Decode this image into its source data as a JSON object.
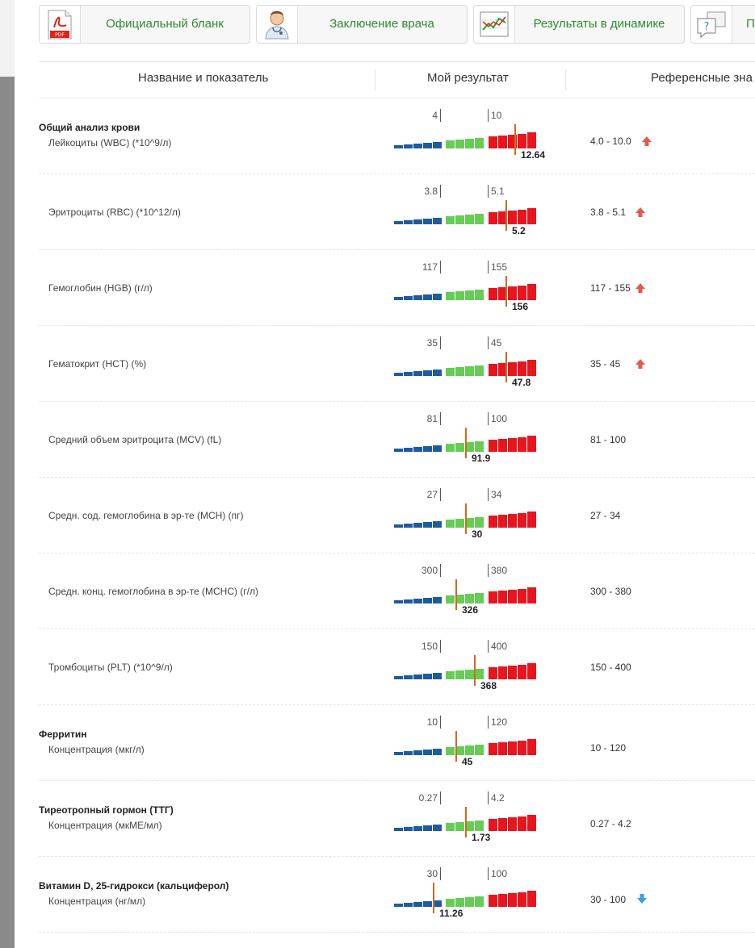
{
  "toolbar": {
    "buttons": [
      {
        "label": "Официальный бланк",
        "icon": "pdf-icon"
      },
      {
        "label": "Заключение врача",
        "icon": "doctor-icon"
      },
      {
        "label": "Результаты в динамике",
        "icon": "chart-dynamics-icon"
      },
      {
        "label": "По",
        "icon": "question-bubbles-icon"
      }
    ]
  },
  "table": {
    "headers": [
      "Название и показатель",
      "Мой результат",
      "Референсные зна"
    ]
  },
  "rows": [
    {
      "group": "Общий анализ крови",
      "param": "Лейкоциты (WBC) (*10^9/л)",
      "low": "4",
      "high": "10",
      "value": "12.64",
      "marker_pos": 0.837,
      "ref": "4.0 - 10.0",
      "flag": "up"
    },
    {
      "group": "",
      "param": "Эритроциты (RBC) (*10^12/л)",
      "low": "3.8",
      "high": "5.1",
      "value": "5.2",
      "marker_pos": 0.774,
      "ref": "3.8 - 5.1",
      "flag": "up"
    },
    {
      "group": "",
      "param": "Гемоглобин (HGB) (г/л)",
      "low": "117",
      "high": "155",
      "value": "156",
      "marker_pos": 0.774,
      "ref": "117 - 155",
      "flag": "up"
    },
    {
      "group": "",
      "param": "Гематокрит (HCT) (%)",
      "low": "35",
      "high": "45",
      "value": "47.8",
      "marker_pos": 0.774,
      "ref": "35 - 45",
      "flag": "up"
    },
    {
      "group": "",
      "param": "Средний объем эритроцита (MCV) (fL)",
      "low": "81",
      "high": "100",
      "value": "91.9",
      "marker_pos": 0.493,
      "ref": "81 - 100",
      "flag": ""
    },
    {
      "group": "",
      "param": "Средн. сод. гемоглобина в эр-те (MCH) (пг)",
      "low": "27",
      "high": "34",
      "value": "30",
      "marker_pos": 0.493,
      "ref": "27 - 34",
      "flag": ""
    },
    {
      "group": "",
      "param": "Средн. конц. гемоглобина в эр-те (MCHC) (г/л)",
      "low": "300",
      "high": "380",
      "value": "326",
      "marker_pos": 0.425,
      "ref": "300 - 380",
      "flag": ""
    },
    {
      "group": "",
      "param": "Тромбоциты (PLT) (*10^9/л)",
      "low": "150",
      "high": "400",
      "value": "368",
      "marker_pos": 0.558,
      "ref": "150 - 400",
      "flag": ""
    },
    {
      "group": "Ферритин",
      "param": "Концентрация (мкг/л)",
      "low": "10",
      "high": "120",
      "value": "45",
      "marker_pos": 0.425,
      "ref": "10 - 120",
      "flag": ""
    },
    {
      "group": "Тиреотропный гормон (ТТГ)",
      "param": "Концентрация (мкМЕ/мл)",
      "low": "0.27",
      "high": "4.2",
      "value": "1.73",
      "marker_pos": 0.493,
      "ref": "0.27 - 4.2",
      "flag": ""
    },
    {
      "group": "Витамин D, 25-гидрокси (кальциферол)",
      "param": "Концентрация (нг/мл)",
      "low": "30",
      "high": "100",
      "value": "11.26",
      "marker_pos": 0.267,
      "ref": "30 - 100",
      "flag": "down"
    }
  ],
  "colors": {
    "low": "#1f5aa0",
    "normal": "#66cc55",
    "high": "#e8141e",
    "marker": "#d2691e",
    "arrow_up": "#e05a4e",
    "arrow_down": "#3a9ee0",
    "toolbar_text": "#2e8b2e"
  }
}
